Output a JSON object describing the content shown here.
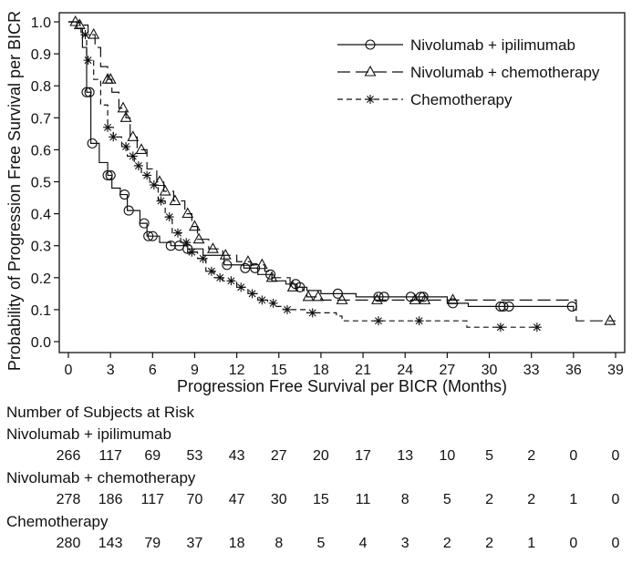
{
  "chart_data": {
    "type": "line",
    "subtype": "kaplan-meier",
    "title": "",
    "xlabel": "Progression Free Survival per BICR (Months)",
    "ylabel": "Probability of Progression Free Survival per BICR",
    "xlim": [
      0,
      39
    ],
    "ylim": [
      0,
      1.0
    ],
    "x_ticks": [
      0,
      3,
      6,
      9,
      12,
      15,
      18,
      21,
      24,
      27,
      30,
      33,
      36,
      39
    ],
    "y_ticks": [
      0.0,
      0.1,
      0.2,
      0.3,
      0.4,
      0.5,
      0.6,
      0.7,
      0.8,
      0.9,
      1.0
    ],
    "y_tick_labels": [
      "0.0",
      "0.1",
      "0.2",
      "0.3",
      "0.4",
      "0.5",
      "0.6",
      "0.7",
      "0.8",
      "0.9",
      "1.0"
    ],
    "grid": false,
    "legend_position": "top-right",
    "series": [
      {
        "name": "Nivolumab + ipilimumab",
        "line_style": "solid",
        "marker": "circle",
        "points": [
          [
            0,
            1.0
          ],
          [
            0.6,
            0.98
          ],
          [
            1.0,
            0.92
          ],
          [
            1.3,
            0.78
          ],
          [
            1.6,
            0.62
          ],
          [
            2.2,
            0.56
          ],
          [
            2.8,
            0.52
          ],
          [
            3.1,
            0.48
          ],
          [
            3.7,
            0.46
          ],
          [
            4.2,
            0.41
          ],
          [
            5.1,
            0.37
          ],
          [
            5.6,
            0.33
          ],
          [
            6.5,
            0.31
          ],
          [
            7.3,
            0.3
          ],
          [
            8.5,
            0.29
          ],
          [
            9.6,
            0.27
          ],
          [
            11.1,
            0.24
          ],
          [
            12.5,
            0.23
          ],
          [
            13.5,
            0.21
          ],
          [
            14.5,
            0.19
          ],
          [
            15.5,
            0.18
          ],
          [
            16.3,
            0.17
          ],
          [
            17.0,
            0.16
          ],
          [
            18.0,
            0.15
          ],
          [
            20.5,
            0.14
          ],
          [
            27.0,
            0.12
          ],
          [
            28.5,
            0.11
          ],
          [
            33.0,
            0.11
          ],
          [
            36.0,
            0.095
          ]
        ],
        "censor_x": [
          1.3,
          1.5,
          1.7,
          2.8,
          3.0,
          4.0,
          4.3,
          5.4,
          5.7,
          6.0,
          7.3,
          7.9,
          8.5,
          11.3,
          12.6,
          13.3,
          14.4,
          16.2,
          16.5,
          19.2,
          22.1,
          22.5,
          24.4,
          25.1,
          25.3,
          27.4,
          30.8,
          31.0,
          31.4,
          35.9
        ]
      },
      {
        "name": "Nivolumab + chemotherapy",
        "line_style": "long-dash",
        "marker": "triangle",
        "points": [
          [
            0,
            1.0
          ],
          [
            0.8,
            0.99
          ],
          [
            1.4,
            0.96
          ],
          [
            1.9,
            0.92
          ],
          [
            2.3,
            0.86
          ],
          [
            2.8,
            0.82
          ],
          [
            3.1,
            0.78
          ],
          [
            3.6,
            0.73
          ],
          [
            4.1,
            0.7
          ],
          [
            4.4,
            0.64
          ],
          [
            4.9,
            0.6
          ],
          [
            5.6,
            0.54
          ],
          [
            6.3,
            0.5
          ],
          [
            6.8,
            0.47
          ],
          [
            7.5,
            0.44
          ],
          [
            8.3,
            0.4
          ],
          [
            8.8,
            0.36
          ],
          [
            9.2,
            0.32
          ],
          [
            10.0,
            0.29
          ],
          [
            11.0,
            0.27
          ],
          [
            12.0,
            0.25
          ],
          [
            13.0,
            0.24
          ],
          [
            14.0,
            0.22
          ],
          [
            14.5,
            0.2
          ],
          [
            15.8,
            0.17
          ],
          [
            16.7,
            0.16
          ],
          [
            17.0,
            0.14
          ],
          [
            18.0,
            0.13
          ],
          [
            36.0,
            0.13
          ],
          [
            36.2,
            0.065
          ],
          [
            39,
            0.065
          ]
        ],
        "censor_x": [
          0.5,
          0.8,
          1.8,
          2.8,
          3.0,
          3.9,
          4.1,
          4.6,
          5.2,
          6.5,
          6.9,
          7.6,
          8.5,
          9.0,
          9.3,
          10.3,
          11.2,
          12.8,
          13.8,
          14.5,
          16.0,
          17.1,
          17.8,
          19.5,
          22.0,
          24.7,
          25.4,
          27.4,
          38.6
        ]
      },
      {
        "name": "Chemotherapy",
        "line_style": "short-dash",
        "marker": "asterisk",
        "points": [
          [
            0,
            1.0
          ],
          [
            0.9,
            0.96
          ],
          [
            1.3,
            0.88
          ],
          [
            1.8,
            0.82
          ],
          [
            2.3,
            0.74
          ],
          [
            2.8,
            0.67
          ],
          [
            3.2,
            0.64
          ],
          [
            3.8,
            0.61
          ],
          [
            4.2,
            0.58
          ],
          [
            4.7,
            0.55
          ],
          [
            5.2,
            0.52
          ],
          [
            5.8,
            0.49
          ],
          [
            6.4,
            0.44
          ],
          [
            6.9,
            0.39
          ],
          [
            7.4,
            0.34
          ],
          [
            8.0,
            0.31
          ],
          [
            8.5,
            0.28
          ],
          [
            9.2,
            0.26
          ],
          [
            9.8,
            0.22
          ],
          [
            10.4,
            0.2
          ],
          [
            11.0,
            0.19
          ],
          [
            12.0,
            0.17
          ],
          [
            12.8,
            0.15
          ],
          [
            13.5,
            0.13
          ],
          [
            14.2,
            0.12
          ],
          [
            14.7,
            0.11
          ],
          [
            15.3,
            0.1
          ],
          [
            17.0,
            0.09
          ],
          [
            19.1,
            0.08
          ],
          [
            19.5,
            0.065
          ],
          [
            28.2,
            0.065
          ],
          [
            28.4,
            0.045
          ],
          [
            33.5,
            0.045
          ]
        ],
        "censor_x": [
          1.2,
          1.4,
          2.8,
          3.2,
          4.1,
          4.6,
          5.0,
          5.6,
          6.1,
          6.6,
          7.2,
          7.8,
          8.4,
          8.8,
          9.6,
          10.2,
          10.8,
          11.6,
          12.3,
          13.1,
          13.8,
          14.6,
          15.6,
          17.4,
          22.1,
          25.0,
          30.8,
          33.4
        ]
      }
    ]
  },
  "risk_table": {
    "title": "Number of Subjects at Risk",
    "rows": [
      {
        "label": "Nivolumab + ipilimumab",
        "counts": [
          "266",
          "117",
          "69",
          "53",
          "43",
          "27",
          "20",
          "17",
          "13",
          "10",
          "5",
          "2",
          "0",
          "0"
        ]
      },
      {
        "label": "Nivolumab + chemotherapy",
        "counts": [
          "278",
          "186",
          "117",
          "70",
          "47",
          "30",
          "15",
          "11",
          "8",
          "5",
          "2",
          "2",
          "1",
          "0"
        ]
      },
      {
        "label": "Chemotherapy",
        "counts": [
          "280",
          "143",
          "79",
          "37",
          "18",
          "8",
          "5",
          "4",
          "3",
          "2",
          "2",
          "1",
          "0",
          "0"
        ]
      }
    ]
  }
}
